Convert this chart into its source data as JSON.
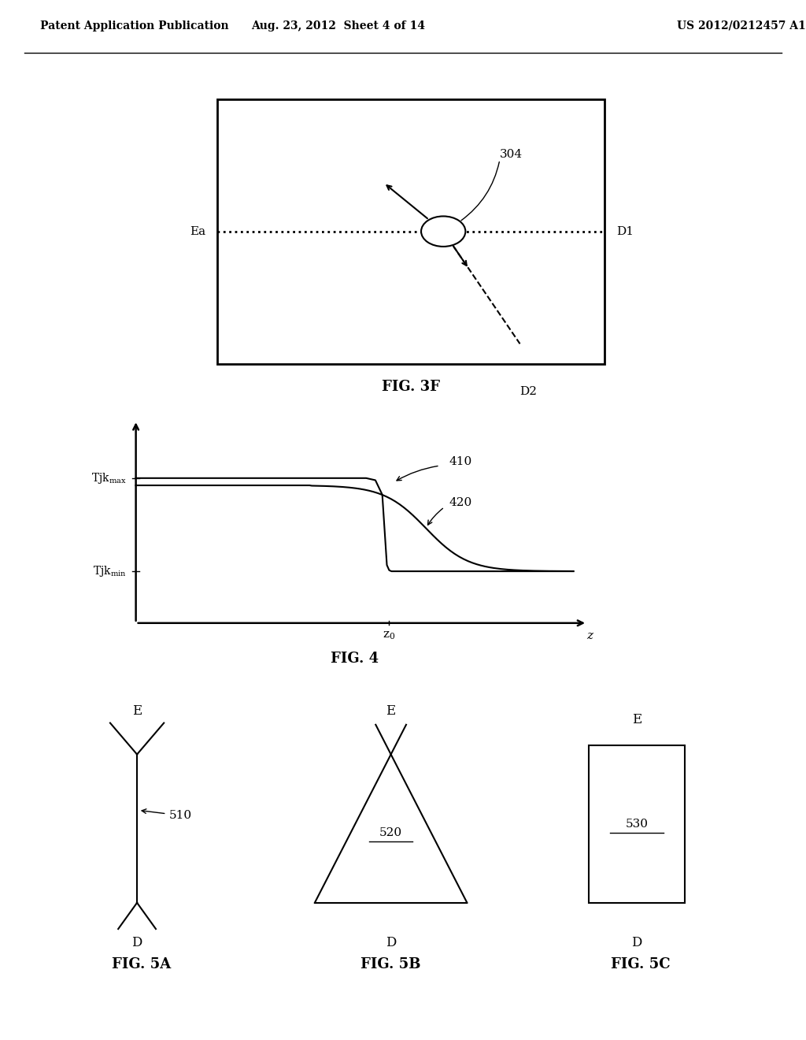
{
  "bg_color": "#ffffff",
  "header_left": "Patent Application Publication",
  "header_center": "Aug. 23, 2012  Sheet 4 of 14",
  "header_right": "US 2012/0212457 A1",
  "fig3f_label": "FIG. 3F",
  "fig4_label": "FIG. 4",
  "fig5a_label": "FIG. 5A",
  "fig5b_label": "FIG. 5B",
  "fig5c_label": "FIG. 5C",
  "label_304": "304",
  "label_410": "410",
  "label_420": "420",
  "label_510": "510",
  "label_520": "520",
  "label_530": "530",
  "label_Ea": "Ea",
  "label_D1": "D1",
  "label_D2": "D2",
  "label_z": "z",
  "label_E": "E",
  "label_D": "D"
}
